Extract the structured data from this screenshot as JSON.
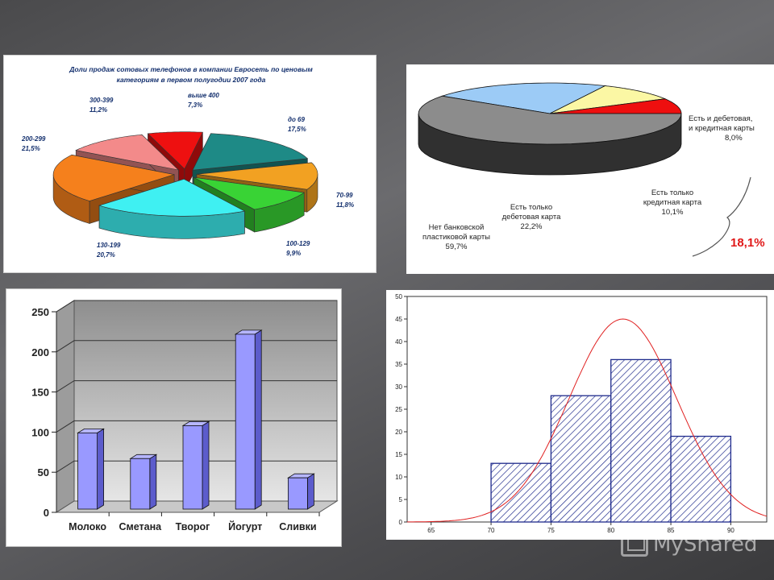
{
  "chart_data": [
    {
      "type": "pie",
      "title": "Доли продаж сотовых телефонов в компании Евросеть по ценовым категориям в первом полугодии 2007 года",
      "title_lines": [
        "Доли продаж сотовых телефонов в компании Евросеть по ценовым",
        "категориям в первом полугодии 2007 года"
      ],
      "slices": [
        {
          "name": "до 69",
          "value": 17.5,
          "value_label": "17,5%",
          "color": "#1e8a86"
        },
        {
          "name": "70-99",
          "value": 11.8,
          "value_label": "11,8%",
          "color": "#f2a122"
        },
        {
          "name": "100-129",
          "value": 9.9,
          "value_label": "9,9%",
          "color": "#39d335"
        },
        {
          "name": "130-199",
          "value": 20.7,
          "value_label": "20,7%",
          "color": "#3ff0f2"
        },
        {
          "name": "200-299",
          "value": 21.5,
          "value_label": "21,5%",
          "color": "#f5801c"
        },
        {
          "name": "300-399",
          "value": 11.2,
          "value_label": "11,2%",
          "color": "#f38a8a"
        },
        {
          "name": "выше 400",
          "value": 7.3,
          "value_label": "7,3%",
          "color": "#ee1010"
        }
      ]
    },
    {
      "type": "pie",
      "slices": [
        {
          "lines": [
            "Есть и дебетовая,",
            "и кредитная карты",
            "8,0%"
          ],
          "value": 8.0,
          "color": "#ee0f0f",
          "side": "#900000"
        },
        {
          "lines": [
            "Есть только",
            "кредитная карта",
            "10,1%"
          ],
          "value": 10.1,
          "color": "#fbf7a4",
          "side": "#8c8a4a"
        },
        {
          "lines": [
            "Есть только",
            "дебетовая карта",
            "22,2%"
          ],
          "value": 22.2,
          "color": "#9ccbf6",
          "side": "#4f6e8f"
        },
        {
          "lines": [
            "Нет банковской",
            "пластиковой карты",
            "59,7%"
          ],
          "value": 59.7,
          "color": "#8c8c8c",
          "side": "#303030"
        }
      ],
      "bracket_total": "18,1%"
    },
    {
      "type": "bar",
      "categories": [
        "Молоко",
        "Сметана",
        "Творог",
        "Йогурт",
        "Сливки"
      ],
      "values": [
        103,
        71,
        112,
        226,
        47
      ],
      "ylim": [
        0,
        250
      ],
      "yticks": [
        0,
        50,
        100,
        150,
        200,
        250
      ],
      "bar_color": "#9999ff",
      "grid": true
    },
    {
      "type": "histogram",
      "bins": [
        {
          "from": 70,
          "to": 75,
          "count": 13
        },
        {
          "from": 75,
          "to": 80,
          "count": 28
        },
        {
          "from": 80,
          "to": 85,
          "count": 36
        },
        {
          "from": 85,
          "to": 90,
          "count": 19
        }
      ],
      "xlim": [
        63,
        93
      ],
      "ylim": [
        0,
        50
      ],
      "xticks": [
        65,
        70,
        75,
        80,
        85,
        90
      ],
      "yticks": [
        0,
        5,
        10,
        15,
        20,
        25,
        30,
        35,
        40,
        45,
        50
      ],
      "normal_curve": {
        "mean": 81,
        "sd": 4.5,
        "peak": 45,
        "color": "#e02020"
      },
      "bar_color": "#1e2a8c"
    }
  ],
  "watermark": "MyShared"
}
